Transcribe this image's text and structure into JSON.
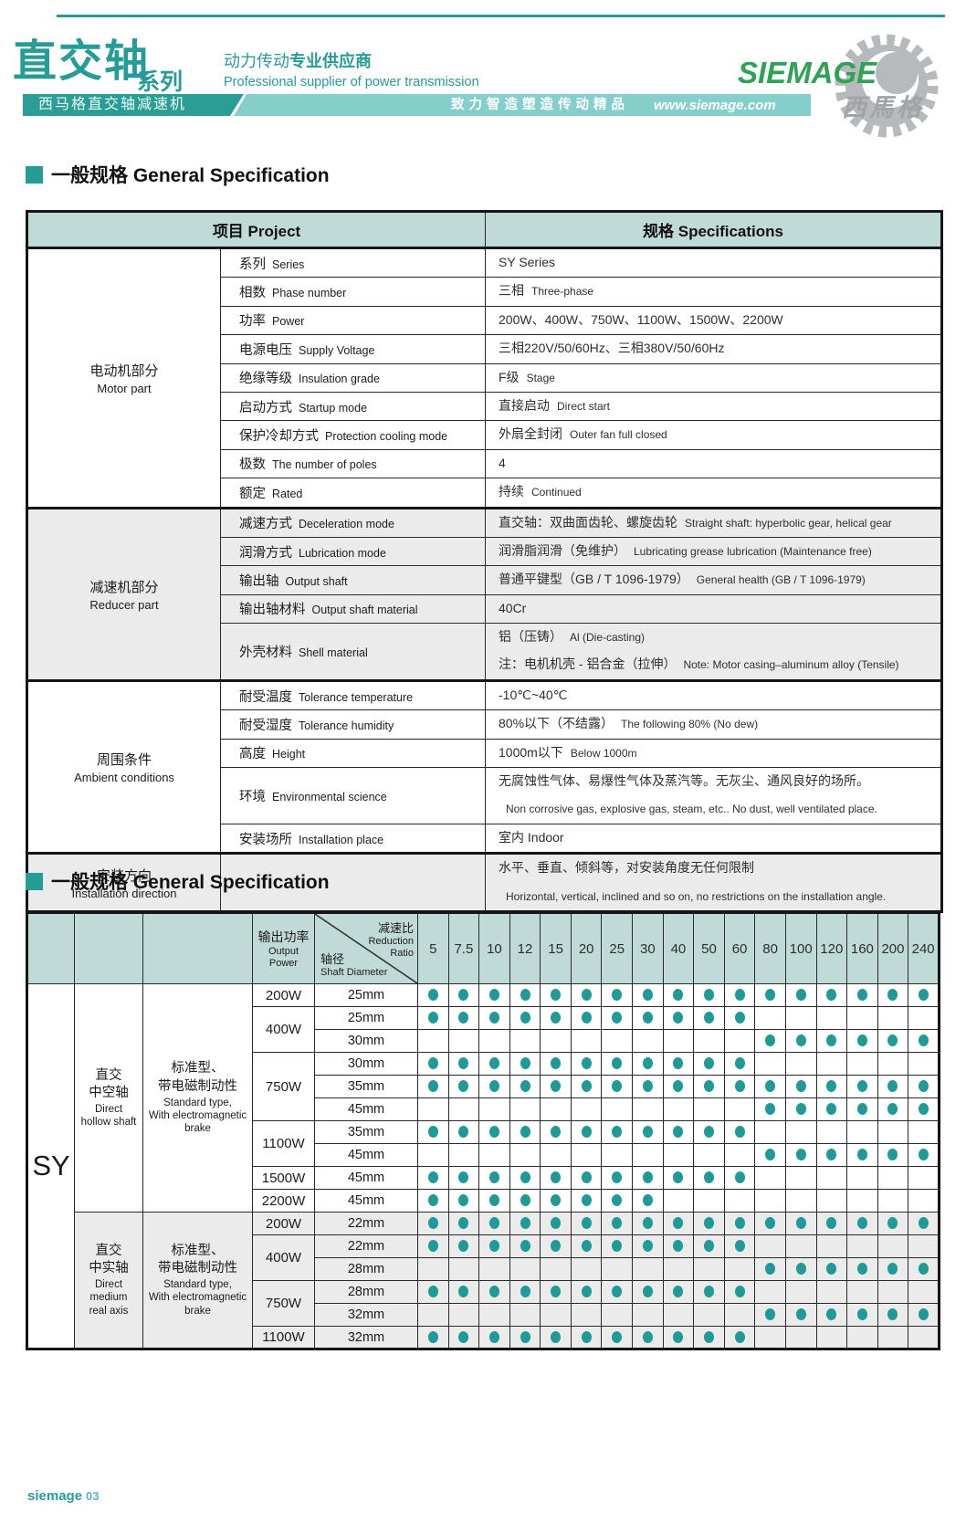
{
  "colors": {
    "accent": "#269c96",
    "band_light": "#85cfcb",
    "table_header_bg": "#c0dbd7",
    "shade_row": "#ebebeb",
    "dot": "#1f9a96",
    "logo_green": "#2fa256",
    "logo_gray": "#9fa4a8"
  },
  "header": {
    "title": "直交轴",
    "title_suffix": "系列",
    "slogan_cn_a": "动力传动",
    "slogan_cn_b": "专业供应商",
    "slogan_en": "Professional supplier of power transmission",
    "band_left": "西马格直交轴减速机",
    "band_mid": "致力智造塑造传动精品",
    "band_url": "www.siemage.com",
    "logo_text": "SIEMAGE",
    "logo_cn": "西馬格"
  },
  "section1": {
    "heading": "一般规格 General Specification",
    "col_project_cn": "项目",
    "col_project_en": "Project",
    "col_spec_cn": "规格",
    "col_spec_en": "Specifications",
    "groups": [
      {
        "label_cn": "电动机部分",
        "label_en": "Motor part",
        "shade": false,
        "rows": [
          {
            "item_cn": "系列",
            "item_en": "Series",
            "val_cn": "SY Series",
            "val_en": ""
          },
          {
            "item_cn": "相数",
            "item_en": "Phase number",
            "val_cn": "三相",
            "val_en": "Three-phase"
          },
          {
            "item_cn": "功率",
            "item_en": "Power",
            "val_cn": "200W、400W、750W、1100W、1500W、2200W",
            "val_en": ""
          },
          {
            "item_cn": "电源电压",
            "item_en": "Supply Voltage",
            "val_cn": "三相220V/50/60Hz、三相380V/50/60Hz",
            "val_en": ""
          },
          {
            "item_cn": "绝缘等级",
            "item_en": "Insulation grade",
            "val_cn": "F级",
            "val_en": "Stage"
          },
          {
            "item_cn": "启动方式",
            "item_en": "Startup mode",
            "val_cn": "直接启动",
            "val_en": "Direct start"
          },
          {
            "item_cn": "保护冷却方式",
            "item_en": "Protection cooling mode",
            "val_cn": "外扇全封闭",
            "val_en": "Outer fan full closed"
          },
          {
            "item_cn": "极数",
            "item_en": "The number of poles",
            "val_cn": "4",
            "val_en": ""
          },
          {
            "item_cn": "额定",
            "item_en": "Rated",
            "val_cn": "持续",
            "val_en": "Continued"
          }
        ]
      },
      {
        "label_cn": "减速机部分",
        "label_en": "Reducer part",
        "shade": true,
        "rows": [
          {
            "item_cn": "减速方式",
            "item_en": "Deceleration mode",
            "val_cn": "直交轴：双曲面齿轮、螺旋齿轮",
            "val_en": "Straight shaft: hyperbolic gear, helical gear"
          },
          {
            "item_cn": "润滑方式",
            "item_en": "Lubrication mode",
            "val_cn": "润滑脂润滑（免维护）",
            "val_en": "Lubricating grease lubrication (Maintenance free)"
          },
          {
            "item_cn": "输出轴",
            "item_en": "Output shaft",
            "val_cn": "普通平键型（GB / T 1096-1979）",
            "val_en": "General health (GB / T 1096-1979)"
          },
          {
            "item_cn": "输出轴材料",
            "item_en": "Output shaft material",
            "val_cn": "40Cr",
            "val_en": ""
          },
          {
            "item_cn": "外壳材料",
            "item_en": "Shell material",
            "tall": true,
            "val_cn": "铝（压铸）",
            "val_en": "Al (Die-casting)",
            "val2_cn": "注：电机机壳 - 铝合金（拉伸）",
            "val2_en": "Note: Motor casing–aluminum alloy (Tensile)"
          }
        ]
      },
      {
        "label_cn": "周围条件",
        "label_en": "Ambient conditions",
        "shade": false,
        "rows": [
          {
            "item_cn": "耐受温度",
            "item_en": "Tolerance temperature",
            "val_cn": "-10℃~40℃",
            "val_en": ""
          },
          {
            "item_cn": "耐受湿度",
            "item_en": "Tolerance humidity",
            "val_cn": "80%以下（不结露）",
            "val_en": "The following 80% (No dew)"
          },
          {
            "item_cn": "高度",
            "item_en": "Height",
            "val_cn": "1000m以下",
            "val_en": "Below 1000m"
          },
          {
            "item_cn": "环境",
            "item_en": "Environmental science",
            "tall": true,
            "val_cn": "无腐蚀性气体、易爆性气体及蒸汽等。无灰尘、通风良好的场所。",
            "val_en": "",
            "val2_cn": "",
            "val2_en": "Non corrosive gas, explosive gas, steam, etc.. No dust, well ventilated place."
          },
          {
            "item_cn": "安装场所",
            "item_en": "Installation place",
            "val_cn": "室内 Indoor",
            "val_en": ""
          }
        ]
      },
      {
        "label_cn": "安装方向",
        "label_en": "Installation direction",
        "shade": true,
        "rows": [
          {
            "item_cn": "",
            "item_en": "",
            "tall2": true,
            "val_cn": "水平、垂直、倾斜等，对安装角度无任何限制",
            "val_en": "",
            "val2_cn": "",
            "val2_en": "Horizontal, vertical, inclined and so on, no restrictions on the installation angle."
          }
        ]
      }
    ]
  },
  "section2": {
    "heading": "一般规格 General Specification",
    "matrix": {
      "series_label": "SY",
      "power_cn": "输出功率",
      "power_en_lines": [
        "Output",
        "Power"
      ],
      "ratio_cn": "减速比",
      "ratio_en_lines": [
        "Reduction",
        "Ratio"
      ],
      "shaft_cn": "轴径",
      "shaft_en": "Shaft Diameter",
      "ratios": [
        "5",
        "7.5",
        "10",
        "12",
        "15",
        "20",
        "25",
        "30",
        "40",
        "50",
        "60",
        "80",
        "100",
        "120",
        "160",
        "200",
        "240"
      ],
      "groups": [
        {
          "shade": false,
          "shaft_cn_lines": [
            "直交",
            "中空轴"
          ],
          "shaft_en_lines": [
            "Direct",
            "hollow shaft"
          ],
          "type_cn_lines": [
            "标准型、",
            "带电磁制动性"
          ],
          "type_en_lines": [
            "Standard type,",
            "With electromagnetic",
            "brake"
          ],
          "rows": [
            {
              "power": "200W",
              "span": 1,
              "diameter": "25mm",
              "dots": [
                1,
                1,
                1,
                1,
                1,
                1,
                1,
                1,
                1,
                1,
                1,
                1,
                1,
                1,
                1,
                1,
                1
              ]
            },
            {
              "power": "400W",
              "span": 2,
              "diameter": "25mm",
              "dots": [
                1,
                1,
                1,
                1,
                1,
                1,
                1,
                1,
                1,
                1,
                1,
                0,
                0,
                0,
                0,
                0,
                0
              ]
            },
            {
              "power": null,
              "diameter": "30mm",
              "dots": [
                0,
                0,
                0,
                0,
                0,
                0,
                0,
                0,
                0,
                0,
                0,
                1,
                1,
                1,
                1,
                1,
                1
              ]
            },
            {
              "power": "750W",
              "span": 3,
              "diameter": "30mm",
              "dots": [
                1,
                1,
                1,
                1,
                1,
                1,
                1,
                1,
                1,
                1,
                1,
                0,
                0,
                0,
                0,
                0,
                0
              ]
            },
            {
              "power": null,
              "diameter": "35mm",
              "dots": [
                1,
                1,
                1,
                1,
                1,
                1,
                1,
                1,
                1,
                1,
                1,
                1,
                1,
                1,
                1,
                1,
                1
              ]
            },
            {
              "power": null,
              "diameter": "45mm",
              "dots": [
                0,
                0,
                0,
                0,
                0,
                0,
                0,
                0,
                0,
                0,
                0,
                1,
                1,
                1,
                1,
                1,
                1
              ]
            },
            {
              "power": "1100W",
              "span": 2,
              "diameter": "35mm",
              "dots": [
                1,
                1,
                1,
                1,
                1,
                1,
                1,
                1,
                1,
                1,
                1,
                0,
                0,
                0,
                0,
                0,
                0
              ]
            },
            {
              "power": null,
              "diameter": "45mm",
              "dots": [
                0,
                0,
                0,
                0,
                0,
                0,
                0,
                0,
                0,
                0,
                0,
                1,
                1,
                1,
                1,
                1,
                1
              ]
            },
            {
              "power": "1500W",
              "span": 1,
              "diameter": "45mm",
              "dots": [
                1,
                1,
                1,
                1,
                1,
                1,
                1,
                1,
                1,
                1,
                1,
                0,
                0,
                0,
                0,
                0,
                0
              ]
            },
            {
              "power": "2200W",
              "span": 1,
              "diameter": "45mm",
              "dots": [
                1,
                1,
                1,
                1,
                1,
                1,
                1,
                1,
                0,
                0,
                0,
                0,
                0,
                0,
                0,
                0,
                0
              ]
            }
          ]
        },
        {
          "shade": true,
          "shaft_cn_lines": [
            "直交",
            "中实轴"
          ],
          "shaft_en_lines": [
            "Direct",
            "medium",
            "real axis"
          ],
          "type_cn_lines": [
            "标准型、",
            "带电磁制动性"
          ],
          "type_en_lines": [
            "Standard type,",
            "With electromagnetic",
            "brake"
          ],
          "rows": [
            {
              "power": "200W",
              "span": 1,
              "diameter": "22mm",
              "dots": [
                1,
                1,
                1,
                1,
                1,
                1,
                1,
                1,
                1,
                1,
                1,
                1,
                1,
                1,
                1,
                1,
                1
              ]
            },
            {
              "power": "400W",
              "span": 2,
              "diameter": "22mm",
              "dots": [
                1,
                1,
                1,
                1,
                1,
                1,
                1,
                1,
                1,
                1,
                1,
                0,
                0,
                0,
                0,
                0,
                0
              ]
            },
            {
              "power": null,
              "diameter": "28mm",
              "dots": [
                0,
                0,
                0,
                0,
                0,
                0,
                0,
                0,
                0,
                0,
                0,
                1,
                1,
                1,
                1,
                1,
                1
              ]
            },
            {
              "power": "750W",
              "span": 2,
              "diameter": "28mm",
              "dots": [
                1,
                1,
                1,
                1,
                1,
                1,
                1,
                1,
                1,
                1,
                1,
                0,
                0,
                0,
                0,
                0,
                0
              ]
            },
            {
              "power": null,
              "diameter": "32mm",
              "dots": [
                0,
                0,
                0,
                0,
                0,
                0,
                0,
                0,
                0,
                0,
                0,
                1,
                1,
                1,
                1,
                1,
                1
              ]
            },
            {
              "power": "1100W",
              "span": 1,
              "diameter": "32mm",
              "dots": [
                1,
                1,
                1,
                1,
                1,
                1,
                1,
                1,
                1,
                1,
                1,
                0,
                0,
                0,
                0,
                0,
                0
              ]
            }
          ]
        }
      ]
    }
  },
  "footer": {
    "brand": "siemage",
    "page": "03"
  }
}
